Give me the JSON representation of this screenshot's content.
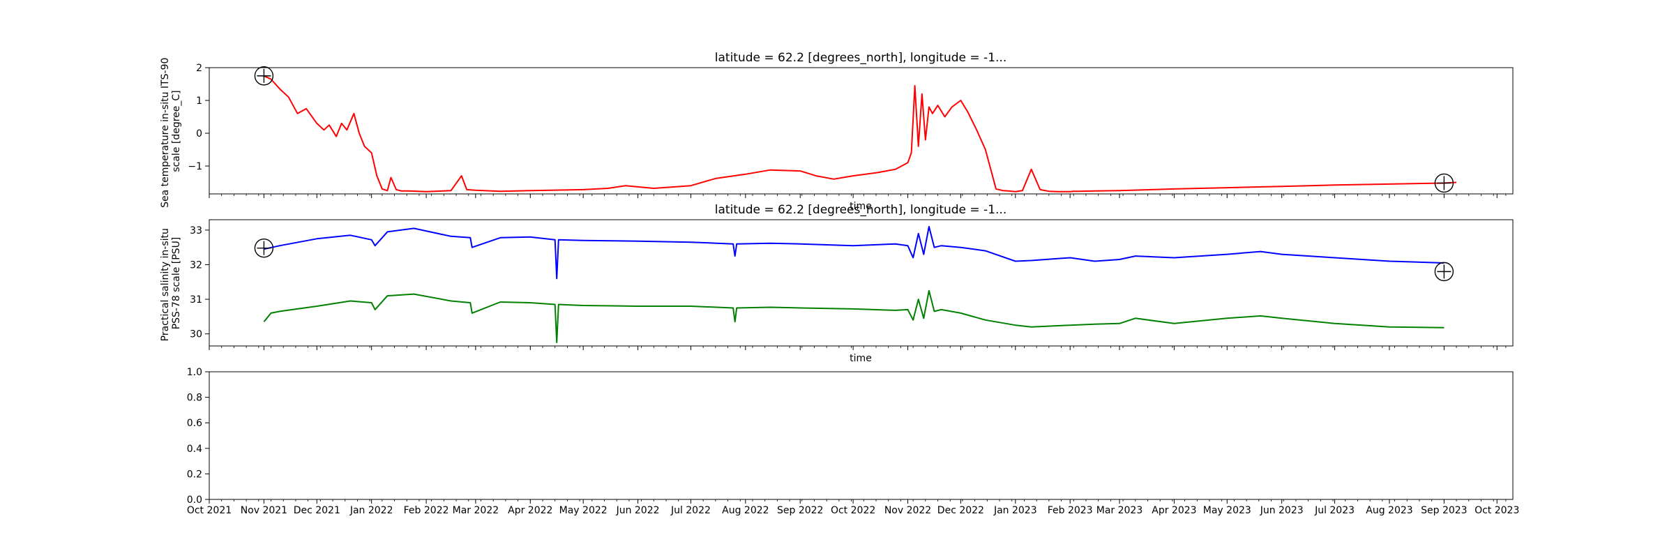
{
  "chart_data": [
    {
      "type": "line",
      "title": "latitude = 62.2 [degrees_north], longitude = -1...",
      "xlabel": "time",
      "ylabel": "Sea temperature in-situ ITS-90 scale [degree_C]",
      "yticks": [
        "2",
        "1",
        "0",
        "−1"
      ],
      "ylim": [
        -1.85,
        2.0
      ],
      "xlim": [
        "2021-10-01",
        "2023-10-10"
      ],
      "grid": false,
      "series": [
        {
          "color": "#ff0000",
          "x": [
            "2021-11-01",
            "2021-11-05",
            "2021-11-10",
            "2021-11-15",
            "2021-11-20",
            "2021-11-25",
            "2021-12-01",
            "2021-12-05",
            "2021-12-08",
            "2021-12-12",
            "2021-12-15",
            "2021-12-18",
            "2021-12-22",
            "2021-12-25",
            "2021-12-28",
            "2022-01-01",
            "2022-01-04",
            "2022-01-07",
            "2022-01-10",
            "2022-01-12",
            "2022-01-15",
            "2022-01-18",
            "2022-01-22",
            "2022-02-01",
            "2022-02-15",
            "2022-02-21",
            "2022-02-24",
            "2022-03-01",
            "2022-03-15",
            "2022-04-01",
            "2022-05-01",
            "2022-05-15",
            "2022-05-25",
            "2022-06-10",
            "2022-07-01",
            "2022-07-15",
            "2022-08-01",
            "2022-08-15",
            "2022-09-01",
            "2022-09-10",
            "2022-09-20",
            "2022-10-01",
            "2022-10-15",
            "2022-10-25",
            "2022-11-01",
            "2022-11-03",
            "2022-11-05",
            "2022-11-07",
            "2022-11-09",
            "2022-11-11",
            "2022-11-13",
            "2022-11-15",
            "2022-11-18",
            "2022-11-22",
            "2022-11-26",
            "2022-12-01",
            "2022-12-05",
            "2022-12-10",
            "2022-12-15",
            "2022-12-18",
            "2022-12-21",
            "2022-12-25",
            "2022-12-28",
            "2023-01-01",
            "2023-01-05",
            "2023-01-10",
            "2023-01-15",
            "2023-01-20",
            "2023-01-25",
            "2023-02-01",
            "2023-02-03",
            "2023-02-06",
            "2023-02-15",
            "2023-03-01",
            "2023-04-01",
            "2023-05-01",
            "2023-06-01",
            "2023-07-01",
            "2023-08-01",
            "2023-09-01",
            "2023-09-08"
          ],
          "values": [
            1.75,
            1.65,
            1.35,
            1.1,
            0.6,
            0.75,
            0.3,
            0.1,
            0.25,
            -0.1,
            0.3,
            0.1,
            0.6,
            0.0,
            -0.4,
            -0.6,
            -1.3,
            -1.7,
            -1.75,
            -1.35,
            -1.72,
            -1.76,
            -1.76,
            -1.78,
            -1.75,
            -1.3,
            -1.72,
            -1.74,
            -1.77,
            -1.75,
            -1.72,
            -1.68,
            -1.6,
            -1.68,
            -1.6,
            -1.38,
            -1.25,
            -1.12,
            -1.15,
            -1.3,
            -1.4,
            -1.3,
            -1.2,
            -1.1,
            -0.9,
            -0.6,
            1.45,
            -0.4,
            1.2,
            -0.2,
            0.8,
            0.6,
            0.85,
            0.5,
            0.8,
            1.0,
            0.65,
            0.1,
            -0.5,
            -1.1,
            -1.7,
            -1.75,
            -1.76,
            -1.78,
            -1.75,
            -1.1,
            -1.72,
            -1.77,
            -1.78,
            -1.78,
            -1.77,
            -1.77,
            -1.76,
            -1.75,
            -1.7,
            -1.66,
            -1.62,
            -1.58,
            -1.55,
            -1.52,
            -1.5
          ]
        }
      ],
      "markers": [
        {
          "symbol": "circle-plus",
          "x": "2021-11-01",
          "y": 1.75
        },
        {
          "symbol": "circle-plus",
          "x": "2023-09-01",
          "y": -1.52
        }
      ]
    },
    {
      "type": "line",
      "title": "latitude = 62.2 [degrees_north], longitude = -1...",
      "xlabel": "time",
      "ylabel": "Practical salinity in-situ PSS-78 scale [PSU]",
      "yticks": [
        "33",
        "32",
        "31",
        "30"
      ],
      "ylim": [
        29.65,
        33.3
      ],
      "xlim": [
        "2021-10-01",
        "2023-10-10"
      ],
      "grid": false,
      "series": [
        {
          "color": "#0000ff",
          "x": [
            "2021-11-01",
            "2021-11-10",
            "2021-12-01",
            "2021-12-20",
            "2022-01-01",
            "2022-01-03",
            "2022-01-10",
            "2022-01-25",
            "2022-02-15",
            "2022-02-26",
            "2022-02-27",
            "2022-03-15",
            "2022-04-01",
            "2022-04-15",
            "2022-04-16",
            "2022-04-17",
            "2022-05-01",
            "2022-06-01",
            "2022-07-01",
            "2022-07-25",
            "2022-07-26",
            "2022-07-27",
            "2022-08-15",
            "2022-09-01",
            "2022-10-01",
            "2022-10-25",
            "2022-11-01",
            "2022-11-04",
            "2022-11-07",
            "2022-11-10",
            "2022-11-13",
            "2022-11-16",
            "2022-11-20",
            "2022-12-01",
            "2022-12-15",
            "2023-01-01",
            "2023-01-10",
            "2023-02-01",
            "2023-02-15",
            "2023-03-01",
            "2023-03-10",
            "2023-04-01",
            "2023-05-01",
            "2023-05-20",
            "2023-06-01",
            "2023-07-01",
            "2023-08-01",
            "2023-09-01"
          ],
          "values": [
            32.45,
            32.55,
            32.75,
            32.85,
            32.72,
            32.55,
            32.95,
            33.05,
            32.82,
            32.78,
            32.5,
            32.78,
            32.8,
            32.72,
            31.6,
            32.72,
            32.7,
            32.68,
            32.65,
            32.6,
            32.25,
            32.6,
            32.62,
            32.6,
            32.55,
            32.6,
            32.55,
            32.2,
            32.9,
            32.3,
            33.1,
            32.5,
            32.55,
            32.5,
            32.4,
            32.1,
            32.12,
            32.2,
            32.1,
            32.15,
            32.25,
            32.2,
            32.3,
            32.38,
            32.3,
            32.2,
            32.1,
            32.05
          ]
        },
        {
          "color": "#008000",
          "x": [
            "2021-11-01",
            "2021-11-05",
            "2021-11-10",
            "2021-12-01",
            "2021-12-20",
            "2022-01-01",
            "2022-01-03",
            "2022-01-10",
            "2022-01-25",
            "2022-02-15",
            "2022-02-26",
            "2022-02-27",
            "2022-03-15",
            "2022-04-01",
            "2022-04-15",
            "2022-04-16",
            "2022-04-17",
            "2022-05-01",
            "2022-06-01",
            "2022-07-01",
            "2022-07-25",
            "2022-07-26",
            "2022-07-27",
            "2022-08-15",
            "2022-09-01",
            "2022-10-01",
            "2022-10-25",
            "2022-11-01",
            "2022-11-04",
            "2022-11-07",
            "2022-11-10",
            "2022-11-13",
            "2022-11-16",
            "2022-11-20",
            "2022-12-01",
            "2022-12-15",
            "2023-01-01",
            "2023-01-10",
            "2023-02-01",
            "2023-02-15",
            "2023-03-01",
            "2023-03-10",
            "2023-04-01",
            "2023-05-01",
            "2023-05-20",
            "2023-06-01",
            "2023-07-01",
            "2023-08-01",
            "2023-09-01"
          ],
          "values": [
            30.35,
            30.6,
            30.65,
            30.8,
            30.95,
            30.9,
            30.7,
            31.1,
            31.15,
            30.95,
            30.9,
            30.6,
            30.92,
            30.9,
            30.85,
            29.75,
            30.85,
            30.82,
            30.8,
            30.8,
            30.75,
            30.35,
            30.75,
            30.77,
            30.75,
            30.72,
            30.68,
            30.7,
            30.4,
            31.0,
            30.45,
            31.25,
            30.65,
            30.7,
            30.6,
            30.4,
            30.25,
            30.2,
            30.25,
            30.28,
            30.3,
            30.45,
            30.3,
            30.45,
            30.52,
            30.45,
            30.3,
            30.2,
            30.18
          ]
        }
      ],
      "markers": [
        {
          "symbol": "circle-plus",
          "x": "2021-11-01",
          "y": 32.48
        },
        {
          "symbol": "circle-plus",
          "x": "2023-09-01",
          "y": 31.8
        }
      ]
    },
    {
      "type": "line",
      "title": "",
      "xlabel": "",
      "ylabel": "",
      "yticks": [
        "1.0",
        "0.8",
        "0.6",
        "0.4",
        "0.2",
        "0.0"
      ],
      "ylim": [
        0,
        1
      ],
      "xlim": [
        "2021-10-01",
        "2023-10-10"
      ],
      "grid": false,
      "series": []
    }
  ],
  "xticks": [
    "Oct 2021",
    "Nov 2021",
    "Dec 2021",
    "Jan 2022",
    "Feb 2022",
    "Mar 2022",
    "Apr 2022",
    "May 2022",
    "Jun 2022",
    "Jul 2022",
    "Aug 2022",
    "Sep 2022",
    "Oct 2022",
    "Nov 2022",
    "Dec 2022",
    "Jan 2023",
    "Feb 2023",
    "Mar 2023",
    "Apr 2023",
    "May 2023",
    "Jun 2023",
    "Jul 2023",
    "Aug 2023",
    "Sep 2023",
    "Oct 2023"
  ]
}
